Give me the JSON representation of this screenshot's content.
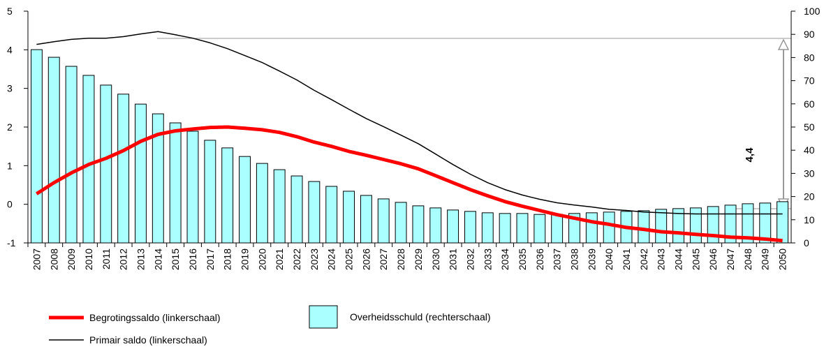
{
  "chart_data": {
    "type": "bar-line",
    "categories": [
      "2007",
      "2008",
      "2009",
      "2010",
      "2011",
      "2012",
      "2013",
      "2014",
      "2015",
      "2016",
      "2017",
      "2018",
      "2019",
      "2020",
      "2021",
      "2022",
      "2023",
      "2024",
      "2025",
      "2026",
      "2027",
      "2028",
      "2029",
      "2030",
      "2031",
      "2032",
      "2033",
      "2034",
      "2035",
      "2036",
      "2037",
      "2038",
      "2039",
      "2040",
      "2041",
      "2042",
      "2043",
      "2044",
      "2045",
      "2046",
      "2047",
      "2048",
      "2049",
      "2050"
    ],
    "series": [
      {
        "name": "Overheidsschuld (rechterschaal)",
        "type": "bar",
        "axis": "y2",
        "color": "#aaffff",
        "values": [
          83.4,
          80.1,
          76.2,
          72.3,
          68.1,
          64.2,
          59.9,
          55.7,
          51.8,
          48.2,
          44.3,
          41.0,
          37.3,
          34.3,
          31.6,
          28.9,
          26.5,
          24.4,
          22.3,
          20.5,
          19.0,
          17.5,
          16.0,
          15.1,
          14.2,
          13.6,
          13.0,
          12.7,
          12.7,
          12.3,
          12.3,
          12.7,
          13.0,
          13.3,
          13.6,
          13.9,
          14.5,
          14.8,
          15.1,
          15.7,
          16.3,
          16.9,
          17.2,
          17.8
        ]
      },
      {
        "name": "Begrotingssaldo (linkerschaal)",
        "type": "line",
        "color": "#ff0000",
        "values": [
          0.27,
          0.56,
          0.81,
          1.03,
          1.19,
          1.39,
          1.63,
          1.81,
          1.9,
          1.95,
          1.99,
          2.0,
          1.97,
          1.93,
          1.86,
          1.75,
          1.61,
          1.5,
          1.37,
          1.27,
          1.16,
          1.05,
          0.92,
          0.74,
          0.56,
          0.38,
          0.22,
          0.07,
          -0.05,
          -0.16,
          -0.27,
          -0.36,
          -0.45,
          -0.52,
          -0.6,
          -0.65,
          -0.71,
          -0.74,
          -0.78,
          -0.81,
          -0.85,
          -0.87,
          -0.9,
          -0.94
        ]
      },
      {
        "name": "Primair saldo (linkerschaal)",
        "type": "line",
        "color": "#000000",
        "values": [
          4.14,
          4.21,
          4.27,
          4.3,
          4.3,
          4.34,
          4.41,
          4.47,
          4.39,
          4.3,
          4.18,
          4.03,
          3.85,
          3.67,
          3.45,
          3.22,
          2.95,
          2.71,
          2.46,
          2.22,
          2.01,
          1.79,
          1.57,
          1.3,
          1.03,
          0.78,
          0.56,
          0.38,
          0.24,
          0.13,
          0.04,
          -0.02,
          -0.07,
          -0.13,
          -0.16,
          -0.2,
          -0.22,
          -0.24,
          -0.25,
          -0.25,
          -0.25,
          -0.25,
          -0.25,
          -0.25
        ]
      }
    ],
    "ylim": [
      -1,
      5
    ],
    "yticks": [
      -1,
      0,
      1,
      2,
      3,
      4,
      5
    ],
    "y2lim": [
      0,
      100
    ],
    "y2ticks": [
      0,
      10,
      20,
      30,
      40,
      50,
      60,
      70,
      80,
      90,
      100
    ],
    "annotation": "4,4"
  }
}
